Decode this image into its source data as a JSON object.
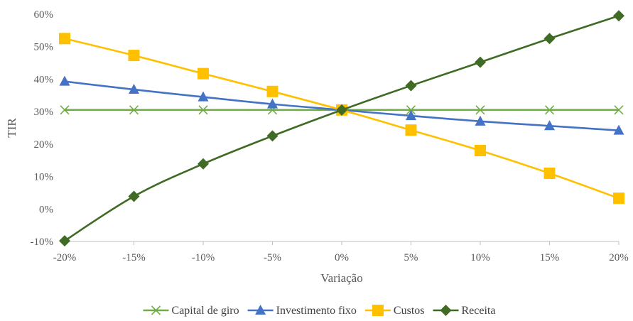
{
  "chart_data": {
    "type": "line",
    "categories": [
      "-20%",
      "-15%",
      "-10%",
      "-5%",
      "0%",
      "5%",
      "10%",
      "15%",
      "20%"
    ],
    "xlabel": "Variação",
    "ylabel": "TIR",
    "ylim": [
      -10,
      60
    ],
    "yticks": [
      -10,
      0,
      10,
      20,
      30,
      40,
      50,
      60
    ],
    "ytick_labels": [
      "-10%",
      "0%",
      "10%",
      "20%",
      "30%",
      "40%",
      "50%",
      "60%"
    ],
    "grid": false,
    "legend_position": "bottom",
    "series": [
      {
        "name": "Capital de giro",
        "color": "#70AD47",
        "marker": "x",
        "values": [
          30.5,
          30.5,
          30.5,
          30.5,
          30.5,
          30.5,
          30.5,
          30.5,
          30.5
        ]
      },
      {
        "name": "Investimento fixo",
        "color": "#4472C4",
        "marker": "triangle",
        "values": [
          39.3,
          36.8,
          34.5,
          32.3,
          30.5,
          28.7,
          27.0,
          25.6,
          24.2
        ]
      },
      {
        "name": "Custos",
        "color": "#FFC000",
        "marker": "square",
        "values": [
          52.5,
          47.3,
          41.7,
          36.2,
          30.5,
          24.3,
          18.0,
          11.0,
          3.3
        ]
      },
      {
        "name": "Receita",
        "color": "#3F6B25",
        "marker": "diamond",
        "values": [
          -9.8,
          3.9,
          13.9,
          22.5,
          30.5,
          38.0,
          45.2,
          52.5,
          59.5
        ]
      }
    ]
  }
}
